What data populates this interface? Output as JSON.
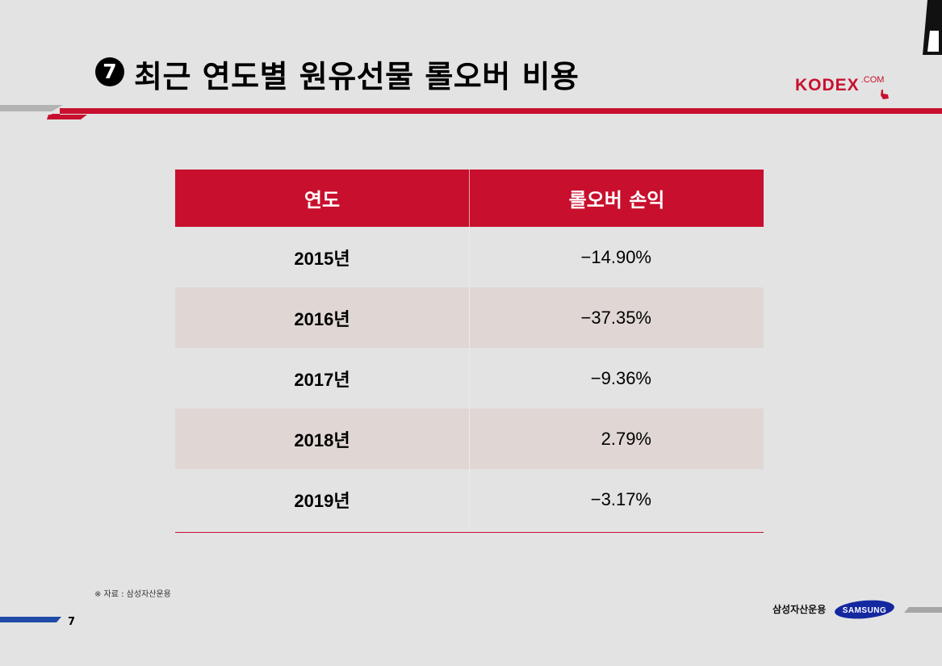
{
  "header": {
    "number": "7",
    "title": "최근 연도별 원유선물 롤오버 비용"
  },
  "logo": {
    "main": "KODEX",
    "suffix": ".COM"
  },
  "table": {
    "headers": [
      "연도",
      "롤오버 손익"
    ],
    "rows": [
      {
        "year": "2015년",
        "value": "−14.90%"
      },
      {
        "year": "2016년",
        "value": "−37.35%"
      },
      {
        "year": "2017년",
        "value": "−9.36%"
      },
      {
        "year": "2018년",
        "value": "2.79%"
      },
      {
        "year": "2019년",
        "value": "−3.17%"
      }
    ]
  },
  "footer": {
    "source": "※ 자료 : 삼성자산운용",
    "page": "7",
    "company": "삼성자산운용",
    "samsung": "SAMSUNG"
  },
  "colors": {
    "accent": "#c8102e",
    "row_shade": "#e0d7d5",
    "samsung_blue": "#1428a0"
  }
}
